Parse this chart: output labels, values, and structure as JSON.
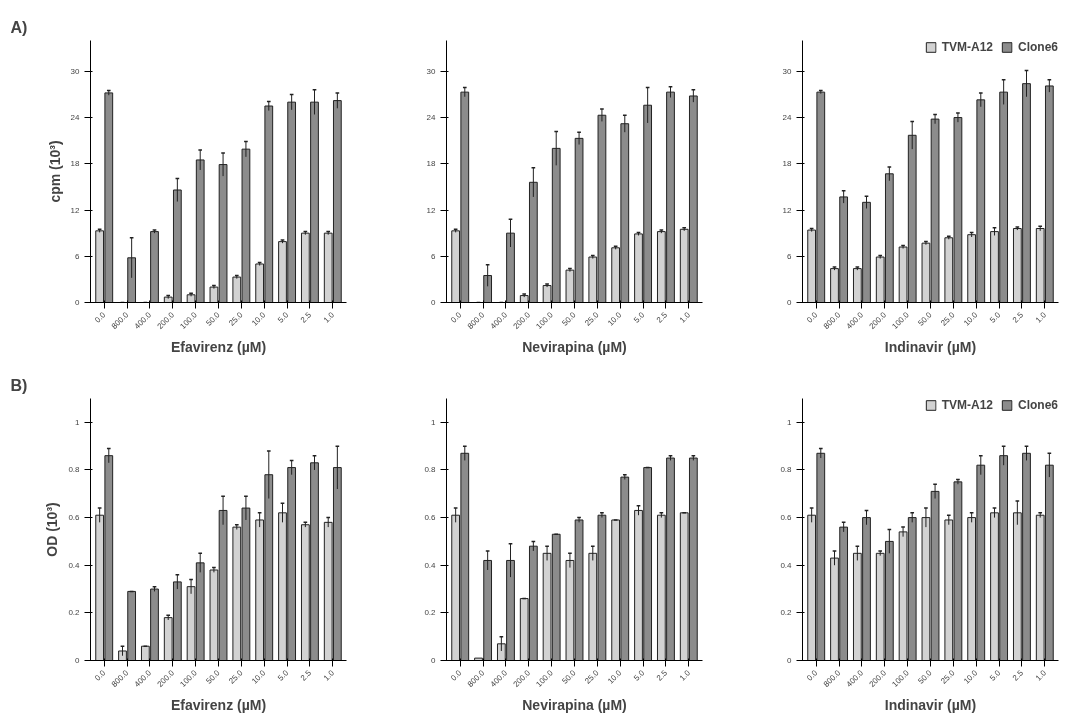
{
  "chart_data": [
    {
      "type": "bar",
      "annotations": [
        "A)"
      ],
      "ylabel": "cpm (10³)",
      "xlabel": "Efavirenz (µM)",
      "categories": [
        "0.0",
        "800.0",
        "400.0",
        "200.0",
        "100.0",
        "50.0",
        "25.0",
        "10.0",
        "5.0",
        "2.5",
        "1.0"
      ],
      "ylim": [
        0,
        34
      ],
      "yticks": [
        0,
        6,
        12,
        18,
        24,
        30
      ],
      "legend": false,
      "grid": false,
      "series": [
        {
          "color": "#d2d2d2",
          "values": [
            9.3,
            0,
            0,
            0.7,
            1.0,
            2.0,
            3.3,
            5.0,
            7.9,
            9.0,
            9.0
          ],
          "errors": [
            0.2,
            0,
            0,
            0.2,
            0.2,
            0.2,
            0.2,
            0.2,
            0.2,
            0.2,
            0.2
          ]
        },
        {
          "color": "#8c8c8c",
          "values": [
            27.2,
            5.8,
            9.2,
            14.6,
            18.5,
            17.9,
            19.9,
            25.5,
            26.0,
            26.0,
            26.2
          ],
          "errors": [
            0.3,
            2.6,
            0.2,
            1.5,
            1.3,
            1.5,
            1.0,
            0.6,
            1.0,
            1.6,
            1.0
          ]
        }
      ]
    },
    {
      "type": "bar",
      "xlabel": "Nevirapina (µM)",
      "categories": [
        "0.0",
        "800.0",
        "400.0",
        "200.0",
        "100.0",
        "50.0",
        "25.0",
        "10.0",
        "5.0",
        "2.5",
        "1.0"
      ],
      "ylim": [
        0,
        34
      ],
      "yticks": [
        0,
        6,
        12,
        18,
        24,
        30
      ],
      "legend": false,
      "grid": false,
      "series": [
        {
          "color": "#d2d2d2",
          "values": [
            9.3,
            0,
            0,
            0.9,
            2.2,
            4.2,
            5.9,
            7.1,
            8.9,
            9.2,
            9.5
          ],
          "errors": [
            0.2,
            0,
            0,
            0.2,
            0.2,
            0.2,
            0.2,
            0.2,
            0.2,
            0.2,
            0.2
          ]
        },
        {
          "color": "#8c8c8c",
          "values": [
            27.3,
            3.5,
            9.0,
            15.6,
            20.0,
            21.3,
            24.3,
            23.2,
            25.6,
            27.3,
            26.8
          ],
          "errors": [
            0.6,
            1.4,
            1.8,
            1.9,
            2.2,
            0.8,
            0.8,
            1.1,
            2.3,
            0.7,
            0.8
          ]
        }
      ]
    },
    {
      "type": "bar",
      "xlabel": "Indinavir (µM)",
      "categories": [
        "0.0",
        "800.0",
        "400.0",
        "200.0",
        "100.0",
        "50.0",
        "25.0",
        "10.0",
        "5.0",
        "2.5",
        "1.0"
      ],
      "ylim": [
        0,
        34
      ],
      "yticks": [
        0,
        6,
        12,
        18,
        24,
        30
      ],
      "legend": "top right",
      "grid": false,
      "series": [
        {
          "name": "TVM-A12",
          "color": "#d2d2d2",
          "values": [
            9.4,
            4.4,
            4.4,
            5.9,
            7.2,
            7.7,
            8.4,
            8.8,
            9.2,
            9.6,
            9.6
          ],
          "errors": [
            0.2,
            0.2,
            0.2,
            0.2,
            0.2,
            0.2,
            0.2,
            0.3,
            0.5,
            0.2,
            0.3
          ]
        },
        {
          "name": "Clone6",
          "color": "#8c8c8c",
          "values": [
            27.3,
            13.7,
            13.0,
            16.7,
            21.7,
            23.8,
            24.0,
            26.3,
            27.3,
            28.4,
            28.1
          ],
          "errors": [
            0.2,
            0.8,
            0.8,
            0.9,
            1.8,
            0.6,
            0.6,
            0.9,
            1.6,
            1.7,
            0.8
          ]
        }
      ]
    },
    {
      "type": "bar",
      "annotations": [
        "B)"
      ],
      "ylabel": "OD (10³)",
      "xlabel": "Efavirenz (µM)",
      "categories": [
        "0.0",
        "800.0",
        "400.0",
        "200.0",
        "100.0",
        "50.0",
        "25.0",
        "10.0",
        "5.0",
        "2.5",
        "1.0"
      ],
      "ylim": [
        0,
        1.1
      ],
      "yticks": [
        0,
        0.2,
        0.4,
        0.6,
        0.8,
        1
      ],
      "legend": false,
      "grid": false,
      "series": [
        {
          "color": "#d2d2d2",
          "values": [
            0.61,
            0.04,
            0.06,
            0.18,
            0.31,
            0.38,
            0.56,
            0.59,
            0.62,
            0.57,
            0.58
          ],
          "errors": [
            0.03,
            0.02,
            0,
            0.01,
            0.03,
            0.01,
            0.01,
            0.03,
            0.04,
            0.01,
            0.02
          ]
        },
        {
          "color": "#8c8c8c",
          "values": [
            0.86,
            0.29,
            0.3,
            0.33,
            0.41,
            0.63,
            0.64,
            0.78,
            0.81,
            0.83,
            0.81
          ],
          "errors": [
            0.03,
            0,
            0.01,
            0.03,
            0.04,
            0.06,
            0.05,
            0.1,
            0.03,
            0.03,
            0.09
          ]
        }
      ]
    },
    {
      "type": "bar",
      "xlabel": "Nevirapina (µM)",
      "categories": [
        "0.0",
        "800.0",
        "400.0",
        "200.0",
        "100.0",
        "50.0",
        "25.0",
        "10.0",
        "5.0",
        "2.5",
        "1.0"
      ],
      "ylim": [
        0,
        1.1
      ],
      "yticks": [
        0,
        0.2,
        0.4,
        0.6,
        0.8,
        1
      ],
      "legend": false,
      "grid": false,
      "series": [
        {
          "color": "#d2d2d2",
          "values": [
            0.61,
            0.01,
            0.07,
            0.26,
            0.45,
            0.42,
            0.45,
            0.59,
            0.63,
            0.61,
            0.62
          ],
          "errors": [
            0.03,
            null,
            0.03,
            0,
            0.03,
            0.03,
            0.03,
            0,
            0.02,
            0.01,
            0
          ]
        },
        {
          "color": "#8c8c8c",
          "values": [
            0.87,
            0.42,
            0.42,
            0.48,
            0.53,
            0.59,
            0.61,
            0.77,
            0.81,
            0.85,
            0.85
          ],
          "errors": [
            0.03,
            0.04,
            0.07,
            0.02,
            0,
            0.01,
            0.01,
            0.01,
            0,
            0.01,
            0.01
          ]
        }
      ]
    },
    {
      "type": "bar",
      "xlabel": "Indinavir (µM)",
      "categories": [
        "0.0",
        "800.0",
        "400.0",
        "200.0",
        "100.0",
        "50.0",
        "25.0",
        "10.0",
        "5.0",
        "2.5",
        "1.0"
      ],
      "ylim": [
        0,
        1.1
      ],
      "yticks": [
        0,
        0.2,
        0.4,
        0.6,
        0.8,
        1
      ],
      "legend": "top right",
      "grid": false,
      "series": [
        {
          "name": "TVM-A12",
          "color": "#d2d2d2",
          "values": [
            0.61,
            0.43,
            0.45,
            0.45,
            0.54,
            0.6,
            0.59,
            0.6,
            0.62,
            0.62,
            0.61
          ],
          "errors": [
            0.03,
            0.03,
            0.03,
            0.01,
            0.02,
            0.04,
            0.02,
            0.02,
            0.02,
            0.05,
            0.01
          ]
        },
        {
          "name": "Clone6",
          "color": "#8c8c8c",
          "values": [
            0.87,
            0.56,
            0.6,
            0.5,
            0.6,
            0.71,
            0.75,
            0.82,
            0.86,
            0.87,
            0.82
          ],
          "errors": [
            0.02,
            0.02,
            0.03,
            0.05,
            0.02,
            0.03,
            0.01,
            0.04,
            0.04,
            0.03,
            0.05
          ]
        }
      ]
    }
  ]
}
